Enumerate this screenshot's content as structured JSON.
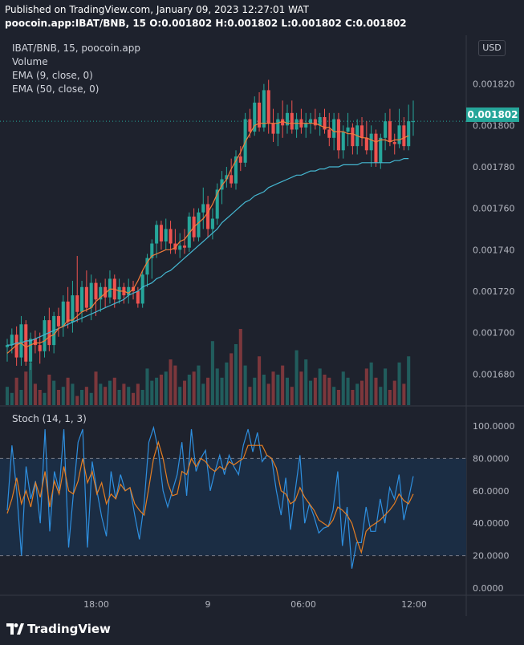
{
  "header": {
    "published_line": "Published on TradingView.com, January 09, 2023 12:27:01 WAT",
    "ohlc_line": "poocoin.app:IBAT/BNB, 15  O:0.001802  H:0.001802  L:0.001802  C:0.001802"
  },
  "legend": {
    "title": "IBAT/BNB, 15, poocoin.app",
    "volume": "Volume",
    "ema9": "EMA (9, close, 0)",
    "ema50": "EMA (50, close, 0)"
  },
  "currency_button": "USD",
  "last_price_label": "0.001802",
  "stoch_panel": {
    "label": "Stoch (14, 1, 3)"
  },
  "brand": {
    "name": "TradingView"
  },
  "colors": {
    "background": "#1e222d",
    "up": "#26a69a",
    "down": "#ef5350",
    "ema9": "#f57c3a",
    "ema50": "#45b7d1",
    "stoch_k": "#2e8fdf",
    "stoch_d": "#e67e22",
    "stoch_band": "#1b2d44"
  },
  "chart_data": [
    {
      "type": "candlestick",
      "price_ylim": [
        0.001665,
        0.001828
      ],
      "price_ticks": [
        "0.001820",
        "0.001800",
        "0.001780",
        "0.001760",
        "0.001740",
        "0.001720",
        "0.001700",
        "0.001680"
      ],
      "x_ticks": [
        "18:00",
        "9",
        "06:00",
        "12:00"
      ],
      "last_price": 0.001802,
      "ohlc": [
        [
          0.001693,
          0.001697,
          0.001686,
          0.001694
        ],
        [
          0.001694,
          0.001702,
          0.00169,
          0.001699
        ],
        [
          0.001699,
          0.001703,
          0.001684,
          0.001688
        ],
        [
          0.001688,
          0.001708,
          0.001684,
          0.001704
        ],
        [
          0.001704,
          0.001706,
          0.001684,
          0.001686
        ],
        [
          0.001686,
          0.0017,
          0.001682,
          0.001697
        ],
        [
          0.001697,
          0.001701,
          0.00169,
          0.001694
        ],
        [
          0.001694,
          0.0017,
          0.001685,
          0.001691
        ],
        [
          0.001691,
          0.001708,
          0.001688,
          0.001706
        ],
        [
          0.001706,
          0.001712,
          0.001691,
          0.001694
        ],
        [
          0.001694,
          0.00171,
          0.00169,
          0.001708
        ],
        [
          0.001708,
          0.001712,
          0.001698,
          0.001703
        ],
        [
          0.001703,
          0.001718,
          0.001698,
          0.001715
        ],
        [
          0.001715,
          0.001722,
          0.001702,
          0.001705
        ],
        [
          0.001705,
          0.001725,
          0.0017,
          0.001718
        ],
        [
          0.001718,
          0.001737,
          0.001705,
          0.00171
        ],
        [
          0.00171,
          0.001725,
          0.001705,
          0.001722
        ],
        [
          0.001722,
          0.00173,
          0.00171,
          0.001712
        ],
        [
          0.001712,
          0.001728,
          0.001706,
          0.001724
        ],
        [
          0.001724,
          0.001726,
          0.001708,
          0.001716
        ],
        [
          0.001716,
          0.001724,
          0.00171,
          0.001722
        ],
        [
          0.001722,
          0.001726,
          0.001712,
          0.001717
        ],
        [
          0.001717,
          0.00173,
          0.001714,
          0.001726
        ],
        [
          0.001726,
          0.001728,
          0.001712,
          0.001716
        ],
        [
          0.001716,
          0.001726,
          0.001714,
          0.001722
        ],
        [
          0.001722,
          0.001724,
          0.001714,
          0.001718
        ],
        [
          0.001718,
          0.001726,
          0.001714,
          0.001722
        ],
        [
          0.001722,
          0.001725,
          0.001716,
          0.00172
        ],
        [
          0.00172,
          0.001722,
          0.001712,
          0.001714
        ],
        [
          0.001714,
          0.00173,
          0.001712,
          0.001728
        ],
        [
          0.001728,
          0.001738,
          0.001722,
          0.001736
        ],
        [
          0.001736,
          0.001745,
          0.001726,
          0.001743
        ],
        [
          0.001743,
          0.001754,
          0.001736,
          0.001752
        ],
        [
          0.001752,
          0.001754,
          0.00174,
          0.001744
        ],
        [
          0.001744,
          0.001755,
          0.00174,
          0.00175
        ],
        [
          0.00175,
          0.001754,
          0.001738,
          0.001743
        ],
        [
          0.001743,
          0.00175,
          0.001738,
          0.00174
        ],
        [
          0.00174,
          0.001748,
          0.001736,
          0.001742
        ],
        [
          0.001742,
          0.00175,
          0.001738,
          0.001741
        ],
        [
          0.001741,
          0.001758,
          0.001739,
          0.001756
        ],
        [
          0.001756,
          0.00176,
          0.001744,
          0.001746
        ],
        [
          0.001746,
          0.00176,
          0.001744,
          0.001758
        ],
        [
          0.001758,
          0.00177,
          0.00175,
          0.001762
        ],
        [
          0.001762,
          0.001766,
          0.001746,
          0.00175
        ],
        [
          0.00175,
          0.00176,
          0.001745,
          0.001755
        ],
        [
          0.001755,
          0.001772,
          0.001752,
          0.001769
        ],
        [
          0.001769,
          0.001778,
          0.001762,
          0.001774
        ],
        [
          0.001774,
          0.00178,
          0.00177,
          0.001776
        ],
        [
          0.001776,
          0.001784,
          0.00177,
          0.001772
        ],
        [
          0.001772,
          0.001788,
          0.001769,
          0.001785
        ],
        [
          0.001785,
          0.00179,
          0.001778,
          0.001782
        ],
        [
          0.001782,
          0.001806,
          0.00178,
          0.001803
        ],
        [
          0.001803,
          0.001808,
          0.001794,
          0.001797
        ],
        [
          0.001797,
          0.001814,
          0.001795,
          0.001811
        ],
        [
          0.001811,
          0.001816,
          0.001797,
          0.001799
        ],
        [
          0.001799,
          0.00182,
          0.001797,
          0.001817
        ],
        [
          0.001817,
          0.001822,
          0.001796,
          0.001801
        ],
        [
          0.001801,
          0.001808,
          0.001792,
          0.001796
        ],
        [
          0.001796,
          0.001806,
          0.00179,
          0.001803
        ],
        [
          0.001803,
          0.001812,
          0.001794,
          0.0018
        ],
        [
          0.0018,
          0.00181,
          0.001796,
          0.001806
        ],
        [
          0.001806,
          0.001812,
          0.001796,
          0.001798
        ],
        [
          0.001798,
          0.001806,
          0.001794,
          0.001803
        ],
        [
          0.001803,
          0.001808,
          0.001796,
          0.001799
        ],
        [
          0.001799,
          0.001806,
          0.001794,
          0.001801
        ],
        [
          0.001801,
          0.001806,
          0.001796,
          0.001803
        ],
        [
          0.001803,
          0.001808,
          0.001798,
          0.0018
        ],
        [
          0.0018,
          0.001806,
          0.001795,
          0.001804
        ],
        [
          0.001804,
          0.001808,
          0.001796,
          0.001798
        ],
        [
          0.001798,
          0.001806,
          0.00179,
          0.001794
        ],
        [
          0.001794,
          0.001806,
          0.001788,
          0.001803
        ],
        [
          0.001803,
          0.001806,
          0.001784,
          0.001788
        ],
        [
          0.001788,
          0.0018,
          0.001784,
          0.001797
        ],
        [
          0.001797,
          0.001806,
          0.00179,
          0.001799
        ],
        [
          0.001799,
          0.001801,
          0.001786,
          0.00179
        ],
        [
          0.00179,
          0.001803,
          0.001786,
          0.0018
        ],
        [
          0.0018,
          0.001804,
          0.00179,
          0.001794
        ],
        [
          0.001794,
          0.001802,
          0.001786,
          0.001788
        ],
        [
          0.001788,
          0.0018,
          0.00178,
          0.001796
        ],
        [
          0.001796,
          0.001798,
          0.00178,
          0.001782
        ],
        [
          0.001782,
          0.001796,
          0.001779,
          0.001794
        ],
        [
          0.001794,
          0.001806,
          0.001788,
          0.001802
        ],
        [
          0.001802,
          0.001808,
          0.00179,
          0.001792
        ],
        [
          0.001792,
          0.001796,
          0.001786,
          0.001791
        ],
        [
          0.001791,
          0.001808,
          0.001789,
          0.0018
        ],
        [
          0.0018,
          0.001804,
          0.001788,
          0.00179
        ],
        [
          0.00179,
          0.00181,
          0.001788,
          0.001802
        ],
        [
          0.001802,
          0.001812,
          0.001795,
          0.001802
        ]
      ],
      "ema9": [
        0.00169,
        0.001692,
        0.001694,
        0.001695,
        0.001693,
        0.001694,
        0.001695,
        0.001695,
        0.001696,
        0.001698,
        0.001699,
        0.001702,
        0.001703,
        0.001706,
        0.001706,
        0.001708,
        0.00171,
        0.001711,
        0.001712,
        0.001715,
        0.001717,
        0.001719,
        0.001721,
        0.001721,
        0.00172,
        0.00172,
        0.001719,
        0.001721,
        0.001725,
        0.00173,
        0.001734,
        0.001737,
        0.001738,
        0.001739,
        0.00174,
        0.00174,
        0.001741,
        0.001744,
        0.001745,
        0.001748,
        0.001751,
        0.001753,
        0.001755,
        0.001758,
        0.001762,
        0.001767,
        0.001771,
        0.001774,
        0.001779,
        0.001783,
        0.001787,
        0.001792,
        0.001796,
        0.0018,
        0.001801,
        0.001801,
        0.001801,
        0.001801,
        0.001801,
        0.001802,
        0.001801,
        0.001801,
        0.001801,
        0.001801,
        0.001801,
        0.001801,
        0.001801,
        0.0018,
        0.001799,
        0.001799,
        0.001797,
        0.001797,
        0.001797,
        0.001796,
        0.001796,
        0.001795,
        0.001794,
        0.001794,
        0.001793,
        0.001792,
        0.001793,
        0.001793,
        0.001792,
        0.001793,
        0.001793,
        0.001794,
        0.001795
      ],
      "ema50": [
        0.001694,
        0.001694,
        0.001695,
        0.001695,
        0.001696,
        0.001696,
        0.001697,
        0.001698,
        0.001699,
        0.0017,
        0.001701,
        0.001702,
        0.001703,
        0.001704,
        0.001705,
        0.001706,
        0.001707,
        0.001708,
        0.001709,
        0.00171,
        0.001711,
        0.001712,
        0.001713,
        0.001714,
        0.001715,
        0.001716,
        0.001718,
        0.001719,
        0.00172,
        0.001722,
        0.001723,
        0.001724,
        0.001726,
        0.001727,
        0.001729,
        0.00173,
        0.001732,
        0.001734,
        0.001736,
        0.001738,
        0.00174,
        0.001742,
        0.001744,
        0.001746,
        0.001748,
        0.00175,
        0.001753,
        0.001755,
        0.001757,
        0.001759,
        0.001761,
        0.001763,
        0.001764,
        0.001766,
        0.001767,
        0.001768,
        0.00177,
        0.001771,
        0.001772,
        0.001773,
        0.001774,
        0.001775,
        0.001776,
        0.001776,
        0.001777,
        0.001778,
        0.001778,
        0.001779,
        0.001779,
        0.00178,
        0.00178,
        0.00178,
        0.001781,
        0.001781,
        0.001781,
        0.001781,
        0.001782,
        0.001782,
        0.001782,
        0.001782,
        0.001782,
        0.001782,
        0.001782,
        0.001783,
        0.001783,
        0.001784,
        0.001784
      ],
      "volume": [
        12,
        8,
        18,
        10,
        22,
        28,
        14,
        10,
        8,
        20,
        16,
        10,
        12,
        18,
        14,
        6,
        10,
        12,
        8,
        22,
        14,
        12,
        16,
        18,
        10,
        14,
        12,
        8,
        14,
        10,
        24,
        16,
        18,
        20,
        22,
        30,
        26,
        12,
        16,
        20,
        22,
        26,
        14,
        18,
        42,
        24,
        18,
        28,
        34,
        40,
        50,
        26,
        12,
        18,
        32,
        20,
        14,
        22,
        20,
        26,
        18,
        12,
        36,
        22,
        30,
        16,
        18,
        24,
        20,
        18,
        12,
        10,
        22,
        18,
        10,
        14,
        16,
        24,
        28,
        18,
        12,
        24,
        10,
        16,
        28,
        14,
        32
      ]
    },
    {
      "type": "line",
      "title": "Stoch (14, 1, 3)",
      "ylim": [
        0,
        100
      ],
      "y_ticks": [
        "100.0000",
        "80.0000",
        "60.0000",
        "40.0000",
        "20.0000",
        "0.0000"
      ],
      "bands": [
        20,
        80
      ],
      "series": [
        {
          "role": "k",
          "values": [
            48,
            88,
            60,
            20,
            75,
            55,
            66,
            40,
            98,
            35,
            72,
            60,
            98,
            25,
            58,
            90,
            98,
            25,
            78,
            60,
            44,
            32,
            72,
            55,
            70,
            60,
            62,
            45,
            30,
            52,
            90,
            99,
            85,
            60,
            50,
            60,
            70,
            90,
            57,
            98,
            72,
            80,
            85,
            60,
            72,
            82,
            70,
            82,
            75,
            70,
            88,
            98,
            84,
            96,
            78,
            82,
            80,
            60,
            45,
            68,
            36,
            60,
            82,
            40,
            52,
            44,
            34,
            37,
            38,
            48,
            72,
            26,
            50,
            12,
            28,
            28,
            50,
            35,
            35,
            55,
            40,
            62,
            55,
            70,
            42,
            55,
            69
          ]
        },
        {
          "role": "d",
          "values": [
            46,
            55,
            68,
            52,
            60,
            50,
            65,
            56,
            72,
            50,
            66,
            58,
            75,
            60,
            58,
            66,
            80,
            65,
            72,
            58,
            65,
            52,
            58,
            55,
            64,
            60,
            62,
            52,
            48,
            45,
            62,
            80,
            90,
            80,
            65,
            57,
            58,
            72,
            70,
            80,
            75,
            80,
            78,
            74,
            72,
            75,
            73,
            78,
            76,
            78,
            80,
            88,
            88,
            88,
            88,
            82,
            80,
            74,
            60,
            58,
            52,
            54,
            62,
            56,
            52,
            48,
            42,
            40,
            38,
            42,
            50,
            48,
            45,
            40,
            30,
            22,
            35,
            38,
            40,
            42,
            45,
            48,
            52,
            58,
            54,
            52,
            58
          ]
        }
      ]
    }
  ]
}
